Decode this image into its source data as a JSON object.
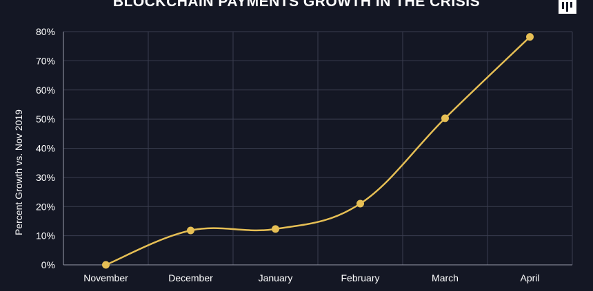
{
  "chart_data": {
    "type": "line",
    "title": "BLOCKCHAIN PAYMENTS GROWTH IN THE CRISIS",
    "xlabel": "",
    "ylabel": "Percent Growth vs. Nov 2019",
    "categories": [
      "November",
      "December",
      "January",
      "February",
      "March",
      "April"
    ],
    "series": [
      {
        "values": [
          0,
          11.8,
          12.3,
          21,
          50.3,
          78.2
        ],
        "color": "#e6bf55"
      }
    ],
    "ylim": [
      0,
      80
    ],
    "yticks": [
      0,
      10,
      20,
      30,
      40,
      50,
      60,
      70,
      80
    ],
    "ytick_labels": [
      "0%",
      "10%",
      "20%",
      "30%",
      "40%",
      "50%",
      "60%",
      "70%",
      "80%"
    ],
    "grid": true,
    "legend": "none",
    "background_color": "#141724",
    "grid_color": "#3a3e4f"
  }
}
